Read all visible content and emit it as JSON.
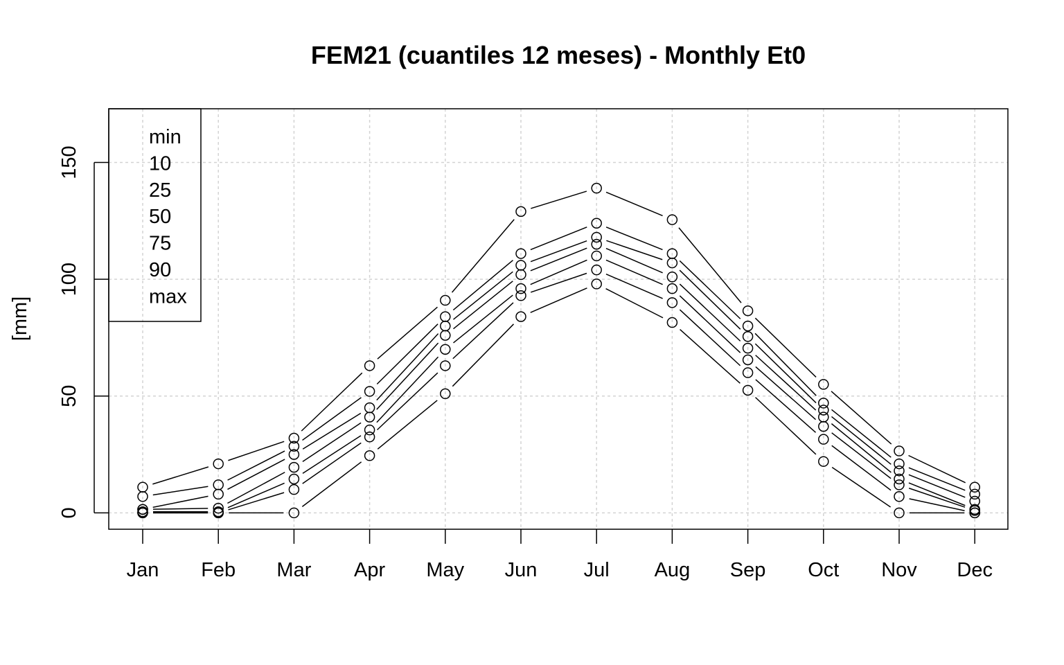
{
  "chart_data": {
    "type": "line",
    "title": "FEM21 (cuantiles 12 meses) - Monthly Et0",
    "xlabel": "",
    "ylabel": "[mm]",
    "ylim": [
      -7,
      173
    ],
    "yticks": [
      0,
      50,
      100,
      150
    ],
    "grid": true,
    "legend_position": "top-left",
    "categories": [
      "Jan",
      "Feb",
      "Mar",
      "Apr",
      "May",
      "Jun",
      "Jul",
      "Aug",
      "Sep",
      "Oct",
      "Nov",
      "Dec"
    ],
    "series": [
      {
        "name": "min",
        "values": [
          0,
          0,
          0,
          24.5,
          51,
          84,
          98,
          81.5,
          52.5,
          22,
          0,
          0
        ]
      },
      {
        "name": "10",
        "values": [
          0,
          0,
          10,
          32.5,
          63,
          93,
          104,
          90,
          60,
          31.5,
          7,
          0
        ]
      },
      {
        "name": "25",
        "values": [
          0.5,
          0.5,
          14.5,
          35.5,
          70,
          96,
          110,
          96,
          65.5,
          37,
          12,
          1
        ]
      },
      {
        "name": "50",
        "values": [
          1.5,
          2,
          19.5,
          41,
          76,
          102,
          115,
          101,
          70.5,
          41,
          14.5,
          1.5
        ]
      },
      {
        "name": "75",
        "values": [
          1.5,
          8,
          25,
          45,
          80,
          106,
          118,
          107,
          75.5,
          44,
          18,
          5
        ]
      },
      {
        "name": "90",
        "values": [
          7,
          12,
          28.5,
          52,
          84,
          111,
          124,
          111,
          80,
          47,
          21,
          8
        ]
      },
      {
        "name": "max",
        "values": [
          11,
          21,
          32,
          63,
          91,
          129,
          139,
          125.5,
          86.5,
          55,
          26.5,
          11
        ]
      }
    ]
  }
}
